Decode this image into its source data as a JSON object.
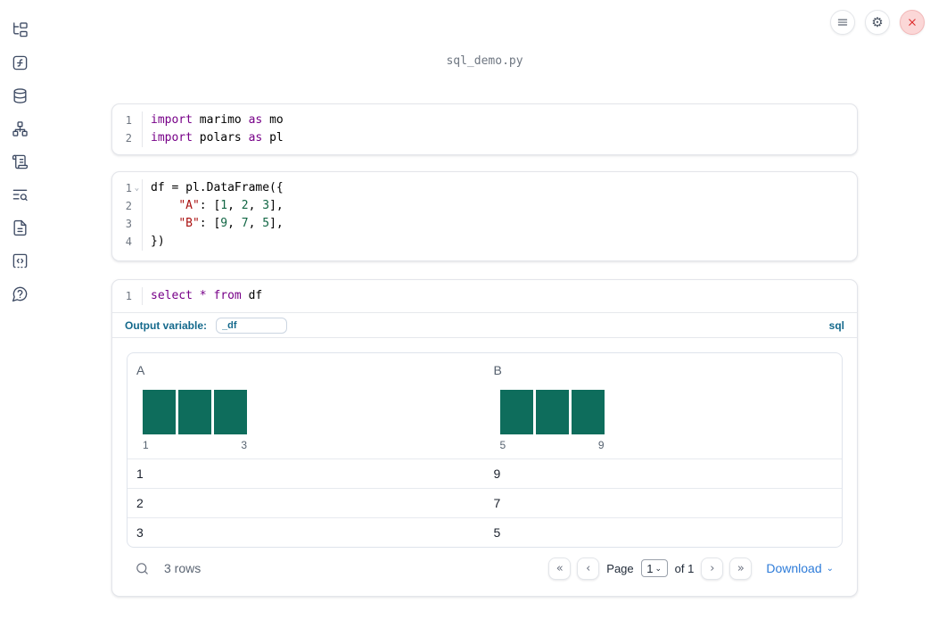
{
  "app": {
    "filename": "sql_demo.py"
  },
  "topbar": {
    "buttons": [
      {
        "name": "menu-button"
      },
      {
        "name": "settings-button"
      },
      {
        "name": "shutdown-button"
      }
    ]
  },
  "sidebar": {
    "items": [
      {
        "name": "explorer",
        "icon": "file-tree-icon"
      },
      {
        "name": "variables",
        "icon": "function-square-icon"
      },
      {
        "name": "data-sources",
        "icon": "database-icon"
      },
      {
        "name": "dependency-graph",
        "icon": "network-icon"
      },
      {
        "name": "logs",
        "icon": "scroll-icon"
      },
      {
        "name": "trace-search",
        "icon": "text-search-icon"
      },
      {
        "name": "documentation",
        "icon": "file-text-icon"
      },
      {
        "name": "snippets",
        "icon": "code-box-icon"
      },
      {
        "name": "help",
        "icon": "help-bubble-icon"
      }
    ]
  },
  "colors": {
    "keyword": "#770088",
    "string": "#aa1111",
    "number": "#116644",
    "histogram_bar": "#0e6d5c",
    "accent_teal": "#14698c",
    "link_blue": "#2e7cd9"
  },
  "cells": [
    {
      "lines": [
        {
          "num": "1",
          "fold": false,
          "tokens": [
            [
              "kw",
              "import"
            ],
            [
              "pl",
              " marimo "
            ],
            [
              "kw",
              "as"
            ],
            [
              "pl",
              " mo"
            ]
          ]
        },
        {
          "num": "2",
          "fold": false,
          "tokens": [
            [
              "kw",
              "import"
            ],
            [
              "pl",
              " polars "
            ],
            [
              "kw",
              "as"
            ],
            [
              "pl",
              " pl"
            ]
          ]
        }
      ]
    },
    {
      "lines": [
        {
          "num": "1",
          "fold": true,
          "tokens": [
            [
              "pl",
              "df = pl.DataFrame({"
            ]
          ]
        },
        {
          "num": "2",
          "fold": false,
          "tokens": [
            [
              "pl",
              "    "
            ],
            [
              "str",
              "\"A\""
            ],
            [
              "pl",
              ": ["
            ],
            [
              "num",
              "1"
            ],
            [
              "pl",
              ", "
            ],
            [
              "num",
              "2"
            ],
            [
              "pl",
              ", "
            ],
            [
              "num",
              "3"
            ],
            [
              "pl",
              "],"
            ]
          ]
        },
        {
          "num": "3",
          "fold": false,
          "tokens": [
            [
              "pl",
              "    "
            ],
            [
              "str",
              "\"B\""
            ],
            [
              "pl",
              ": ["
            ],
            [
              "num",
              "9"
            ],
            [
              "pl",
              ", "
            ],
            [
              "num",
              "7"
            ],
            [
              "pl",
              ", "
            ],
            [
              "num",
              "5"
            ],
            [
              "pl",
              "],"
            ]
          ]
        },
        {
          "num": "4",
          "fold": false,
          "tokens": [
            [
              "pl",
              "})"
            ]
          ]
        }
      ]
    },
    {
      "lines": [
        {
          "num": "1",
          "fold": false,
          "tokens": [
            [
              "kw",
              "select"
            ],
            [
              "pl",
              " "
            ],
            [
              "kw",
              "*"
            ],
            [
              "pl",
              " "
            ],
            [
              "kw",
              "from"
            ],
            [
              "pl",
              " df"
            ]
          ]
        }
      ]
    }
  ],
  "sql_cell": {
    "output_variable_label": "Output variable:",
    "output_variable_value": "_df",
    "language_label": "sql"
  },
  "table": {
    "columns": [
      {
        "label": "A",
        "hist": {
          "bars": [
            1,
            1,
            1
          ],
          "min_label": "1",
          "max_label": "3"
        }
      },
      {
        "label": "B",
        "hist": {
          "bars": [
            1,
            1,
            1
          ],
          "min_label": "5",
          "max_label": "9"
        }
      }
    ],
    "rows": [
      [
        "1",
        "9"
      ],
      [
        "2",
        "7"
      ],
      [
        "3",
        "5"
      ]
    ],
    "footer": {
      "row_count": "3 rows",
      "page_label": "Page",
      "page_value": "1",
      "of_label": "of 1",
      "download_label": "Download"
    },
    "icons": {
      "first": "«",
      "prev": "‹",
      "next": "›",
      "last": "»",
      "caret": "⌄"
    }
  }
}
